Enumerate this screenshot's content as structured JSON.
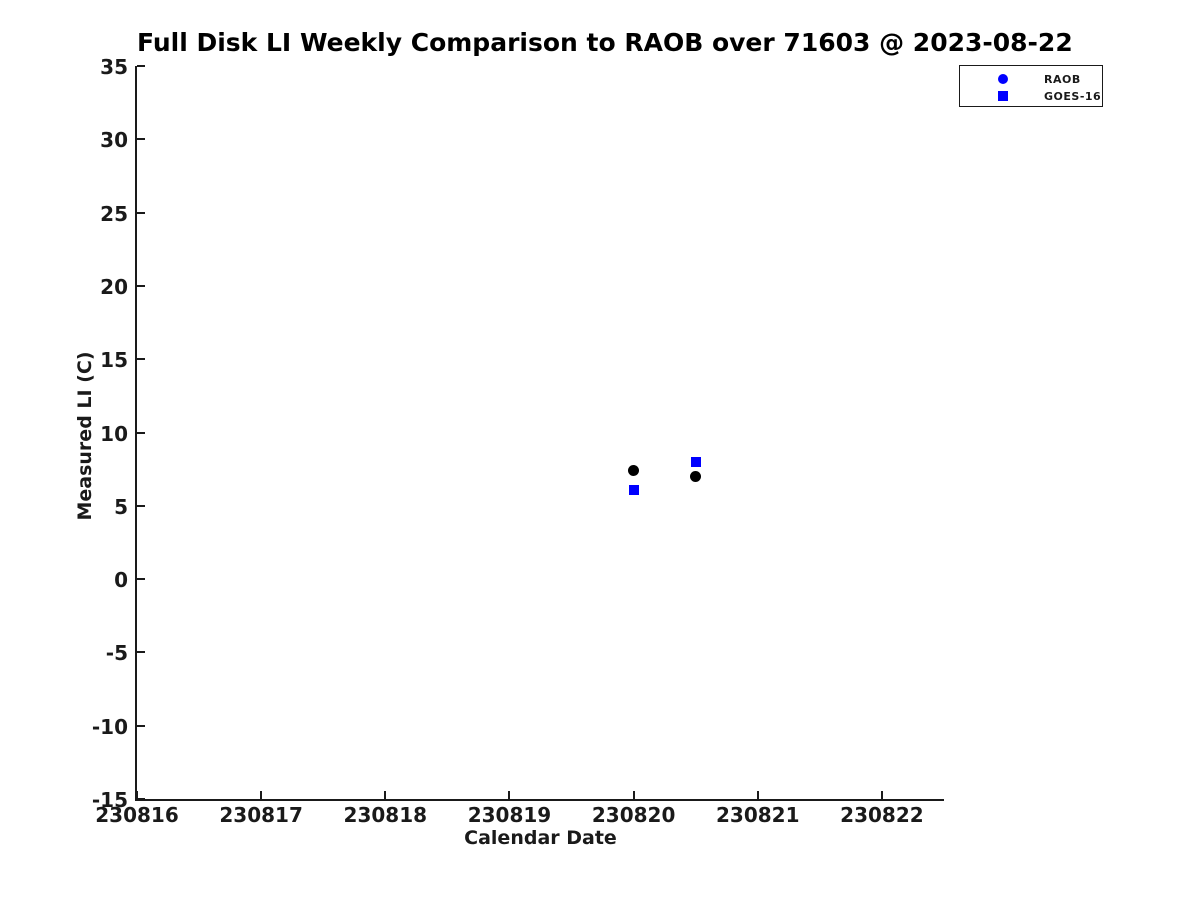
{
  "page": {
    "background": "#ffffff"
  },
  "chart_data": {
    "type": "scatter",
    "title": "Full Disk LI Weekly Comparison to RAOB over 71603 @ 2023-08-22",
    "xlabel": "Calendar Date",
    "ylabel": "Measured LI (C)",
    "xlim": [
      230816,
      230822.5
    ],
    "ylim": [
      -15,
      35
    ],
    "x_ticks": [
      230816,
      230817,
      230818,
      230819,
      230820,
      230821,
      230822
    ],
    "y_ticks": [
      35,
      30,
      25,
      20,
      15,
      10,
      5,
      0,
      -5,
      -10,
      -15
    ],
    "grid": false,
    "axis_color": "#1a1a1a",
    "text_color": "#1a1a1a",
    "legend": {
      "position": "top-right"
    },
    "series": [
      {
        "name": "RAOB",
        "marker": "circle",
        "color": "#000000",
        "legend_color": "#0000ff",
        "points": [
          [
            230820.0,
            7.4
          ],
          [
            230820.5,
            7.0
          ]
        ]
      },
      {
        "name": "GOES-16",
        "marker": "square",
        "color": "#0000ff",
        "legend_color": "#0000ff",
        "points": [
          [
            230820.0,
            6.1
          ],
          [
            230820.5,
            8.0
          ]
        ]
      }
    ]
  }
}
